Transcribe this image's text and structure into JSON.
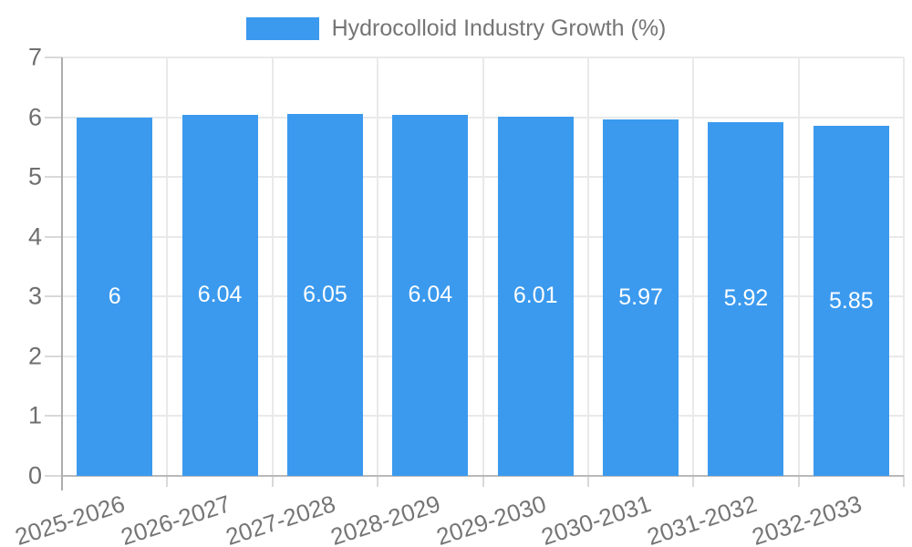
{
  "legend": {
    "label": "Hydrocolloid Industry Growth (%)"
  },
  "chart_data": {
    "type": "bar",
    "title": "Hydrocolloid Industry Growth (%)",
    "categories": [
      "2025-2026",
      "2026-2027",
      "2027-2028",
      "2028-2029",
      "2029-2030",
      "2030-2031",
      "2031-2032",
      "2032-2033"
    ],
    "values": [
      6,
      6.04,
      6.05,
      6.04,
      6.01,
      5.97,
      5.92,
      5.85
    ],
    "value_labels": [
      "6",
      "6.04",
      "6.05",
      "6.04",
      "6.01",
      "5.97",
      "5.92",
      "5.85"
    ],
    "series": [
      {
        "name": "Hydrocolloid Industry Growth (%)",
        "values": [
          6,
          6.04,
          6.05,
          6.04,
          6.01,
          5.97,
          5.92,
          5.85
        ]
      }
    ],
    "xlabel": "",
    "ylabel": "",
    "ylim": [
      0,
      7
    ],
    "yticks": [
      0,
      1,
      2,
      3,
      4,
      5,
      6,
      7
    ],
    "grid": true,
    "legend_position": "top-center",
    "value_label_position": "center-inside",
    "x_tick_label_rotation_deg": -18,
    "bar_color": "#3b9aee"
  },
  "colors": {
    "bar": "#3b9aee",
    "grid": "#e9e9e9",
    "axis": "#adadad",
    "baseline": "#b9b9b9",
    "tick": "#d9d9d9",
    "text": "#757575",
    "bar_label_text": "#ffffff",
    "background": "#ffffff"
  }
}
